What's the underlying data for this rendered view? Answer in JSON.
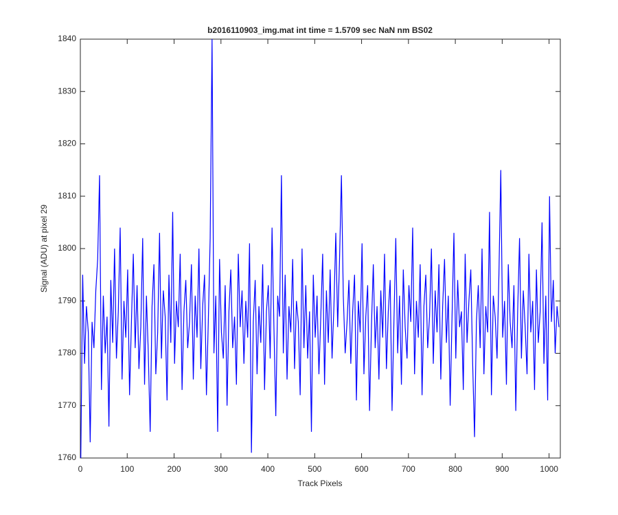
{
  "chart_data": {
    "type": "line",
    "title": "b2016110903_img.mat int time = 1.5709 sec  NaN nm BS02",
    "x_label": "Track Pixels",
    "y_label": "Signal (ADU) at pixel 29",
    "color": "#0000ff",
    "xlim": [
      0,
      1024
    ],
    "ylim": [
      1760,
      1840
    ],
    "xticks": [
      0,
      100,
      200,
      300,
      400,
      500,
      600,
      700,
      800,
      900,
      1000
    ],
    "yticks": [
      1760,
      1770,
      1780,
      1790,
      1800,
      1810,
      1820,
      1830,
      1840
    ],
    "grid": false,
    "x": [
      1,
      5,
      9,
      13,
      17,
      21,
      25,
      29,
      33,
      37,
      41,
      45,
      49,
      53,
      57,
      61,
      65,
      69,
      73,
      77,
      81,
      85,
      89,
      93,
      97,
      101,
      105,
      109,
      113,
      117,
      121,
      125,
      129,
      133,
      137,
      141,
      145,
      149,
      153,
      157,
      161,
      165,
      169,
      173,
      177,
      181,
      185,
      189,
      193,
      197,
      201,
      205,
      209,
      213,
      217,
      221,
      225,
      229,
      233,
      237,
      241,
      245,
      249,
      253,
      257,
      261,
      265,
      269,
      273,
      277,
      281,
      285,
      289,
      293,
      297,
      301,
      305,
      309,
      313,
      317,
      321,
      325,
      329,
      333,
      337,
      341,
      345,
      349,
      353,
      357,
      361,
      365,
      369,
      373,
      377,
      381,
      385,
      389,
      393,
      397,
      401,
      405,
      409,
      413,
      417,
      421,
      425,
      429,
      433,
      437,
      441,
      445,
      449,
      453,
      457,
      461,
      465,
      469,
      473,
      477,
      481,
      485,
      489,
      493,
      497,
      501,
      505,
      509,
      513,
      517,
      521,
      525,
      529,
      533,
      537,
      541,
      545,
      549,
      553,
      557,
      561,
      565,
      569,
      573,
      577,
      581,
      585,
      589,
      593,
      597,
      601,
      605,
      609,
      613,
      617,
      621,
      625,
      629,
      633,
      637,
      641,
      645,
      649,
      653,
      657,
      661,
      665,
      669,
      673,
      677,
      681,
      685,
      689,
      693,
      697,
      701,
      705,
      709,
      713,
      717,
      721,
      725,
      729,
      733,
      737,
      741,
      745,
      749,
      753,
      757,
      761,
      765,
      769,
      773,
      777,
      781,
      785,
      789,
      793,
      797,
      801,
      805,
      809,
      813,
      817,
      821,
      825,
      829,
      833,
      837,
      841,
      845,
      849,
      853,
      857,
      861,
      865,
      869,
      873,
      877,
      881,
      885,
      889,
      893,
      897,
      901,
      905,
      909,
      913,
      917,
      921,
      925,
      929,
      933,
      937,
      941,
      945,
      949,
      953,
      957,
      961,
      965,
      969,
      973,
      977,
      981,
      985,
      989,
      993,
      997,
      1001,
      1005,
      1009,
      1013,
      1017,
      1021
    ],
    "values": [
      1760,
      1795,
      1778,
      1789,
      1784,
      1763,
      1786,
      1781,
      1792,
      1798,
      1814,
      1773,
      1791,
      1780,
      1787,
      1766,
      1794,
      1782,
      1800,
      1779,
      1788,
      1804,
      1775,
      1790,
      1783,
      1796,
      1772,
      1786,
      1799,
      1781,
      1793,
      1777,
      1785,
      1802,
      1774,
      1791,
      1780,
      1765,
      1789,
      1797,
      1776,
      1784,
      1803,
      1779,
      1792,
      1787,
      1771,
      1795,
      1782,
      1807,
      1778,
      1790,
      1785,
      1799,
      1773,
      1788,
      1794,
      1781,
      1786,
      1797,
      1775,
      1791,
      1783,
      1800,
      1777,
      1789,
      1795,
      1772,
      1786,
      1802,
      1840,
      1780,
      1791,
      1765,
      1798,
      1784,
      1779,
      1793,
      1770,
      1788,
      1796,
      1781,
      1787,
      1774,
      1799,
      1785,
      1792,
      1778,
      1790,
      1783,
      1801,
      1761,
      1786,
      1794,
      1776,
      1789,
      1782,
      1797,
      1773,
      1788,
      1793,
      1779,
      1804,
      1785,
      1768,
      1791,
      1787,
      1814,
      1780,
      1795,
      1775,
      1789,
      1784,
      1798,
      1777,
      1790,
      1786,
      1772,
      1800,
      1781,
      1793,
      1779,
      1788,
      1765,
      1795,
      1783,
      1791,
      1776,
      1787,
      1799,
      1774,
      1792,
      1782,
      1796,
      1779,
      1789,
      1803,
      1785,
      1798,
      1814,
      1791,
      1780,
      1786,
      1794,
      1778,
      1788,
      1795,
      1771,
      1790,
      1784,
      1801,
      1776,
      1787,
      1793,
      1769,
      1785,
      1797,
      1781,
      1789,
      1775,
      1792,
      1783,
      1799,
      1777,
      1788,
      1794,
      1769,
      1786,
      1802,
      1780,
      1791,
      1774,
      1796,
      1785,
      1779,
      1793,
      1786,
      1804,
      1776,
      1790,
      1783,
      1797,
      1772,
      1789,
      1795,
      1781,
      1787,
      1800,
      1778,
      1792,
      1784,
      1797,
      1775,
      1789,
      1798,
      1782,
      1791,
      1770,
      1787,
      1803,
      1779,
      1794,
      1785,
      1788,
      1773,
      1799,
      1782,
      1790,
      1796,
      1778,
      1764,
      1786,
      1793,
      1781,
      1800,
      1776,
      1789,
      1784,
      1807,
      1772,
      1791,
      1787,
      1779,
      1795,
      1815,
      1783,
      1790,
      1774,
      1797,
      1786,
      1781,
      1793,
      1769,
      1788,
      1802,
      1779,
      1792,
      1785,
      1776,
      1799,
      1784,
      1790,
      1773,
      1796,
      1782,
      1788,
      1805,
      1778,
      1791,
      1771,
      1810,
      1786,
      1794,
      1780,
      1789,
      1785
    ]
  }
}
